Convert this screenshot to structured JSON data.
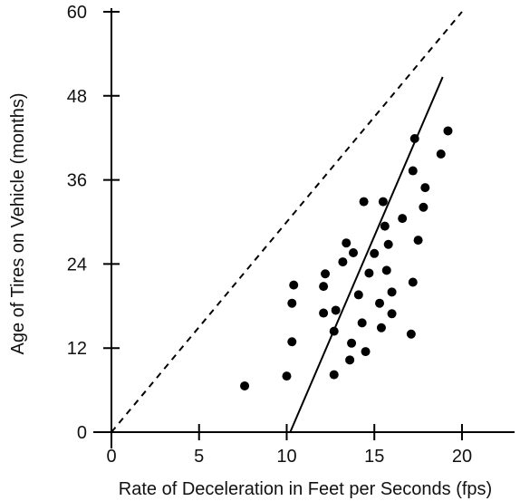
{
  "chart_data": {
    "type": "scatter",
    "title": "",
    "xlabel": "Rate of Deceleration in Feet per Seconds (fps)",
    "ylabel": "Age of Tires on Vehicle (months)",
    "xlim": [
      0,
      23
    ],
    "ylim": [
      0,
      60
    ],
    "xticks": [
      "0",
      "5",
      "10",
      "15",
      "20"
    ],
    "yticks": [
      "0",
      "12",
      "24",
      "36",
      "48",
      "60"
    ],
    "grid": false,
    "colors": {
      "points": "#000000",
      "lines": "#000000",
      "text": "#111111"
    },
    "points": [
      {
        "x": 7.6,
        "y": 6.6
      },
      {
        "x": 10.0,
        "y": 8.0
      },
      {
        "x": 10.3,
        "y": 12.9
      },
      {
        "x": 10.3,
        "y": 18.4
      },
      {
        "x": 10.4,
        "y": 21.0
      },
      {
        "x": 12.1,
        "y": 17.0
      },
      {
        "x": 12.1,
        "y": 20.8
      },
      {
        "x": 12.2,
        "y": 22.6
      },
      {
        "x": 12.7,
        "y": 14.4
      },
      {
        "x": 12.7,
        "y": 8.2
      },
      {
        "x": 12.8,
        "y": 17.4
      },
      {
        "x": 13.2,
        "y": 24.3
      },
      {
        "x": 13.4,
        "y": 27.0
      },
      {
        "x": 13.6,
        "y": 10.3
      },
      {
        "x": 13.7,
        "y": 12.7
      },
      {
        "x": 13.8,
        "y": 25.6
      },
      {
        "x": 14.1,
        "y": 19.6
      },
      {
        "x": 14.3,
        "y": 15.6
      },
      {
        "x": 14.4,
        "y": 32.9
      },
      {
        "x": 14.5,
        "y": 11.5
      },
      {
        "x": 14.7,
        "y": 22.7
      },
      {
        "x": 15.0,
        "y": 25.5
      },
      {
        "x": 15.3,
        "y": 18.4
      },
      {
        "x": 15.4,
        "y": 14.9
      },
      {
        "x": 15.5,
        "y": 32.9
      },
      {
        "x": 15.6,
        "y": 29.4
      },
      {
        "x": 15.7,
        "y": 23.1
      },
      {
        "x": 15.8,
        "y": 26.8
      },
      {
        "x": 16.0,
        "y": 20.0
      },
      {
        "x": 16.0,
        "y": 16.9
      },
      {
        "x": 16.6,
        "y": 30.5
      },
      {
        "x": 17.1,
        "y": 14.0
      },
      {
        "x": 17.2,
        "y": 37.3
      },
      {
        "x": 17.2,
        "y": 21.4
      },
      {
        "x": 17.3,
        "y": 41.9
      },
      {
        "x": 17.5,
        "y": 27.4
      },
      {
        "x": 17.8,
        "y": 32.1
      },
      {
        "x": 17.9,
        "y": 34.9
      },
      {
        "x": 18.8,
        "y": 39.7
      },
      {
        "x": 19.2,
        "y": 43.0
      }
    ],
    "lines": [
      {
        "style": "solid",
        "points": [
          [
            10.2,
            0
          ],
          [
            18.9,
            50.7
          ]
        ]
      },
      {
        "style": "dashed",
        "points": [
          [
            0,
            0
          ],
          [
            20,
            60
          ]
        ]
      }
    ]
  }
}
